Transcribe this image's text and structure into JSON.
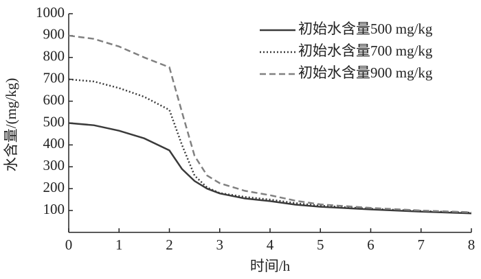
{
  "chart_data": {
    "type": "line",
    "xlabel": "时间/h",
    "ylabel": "水含量/(mg/kg)",
    "x": [
      0,
      0.5,
      1,
      1.5,
      2,
      2.25,
      2.5,
      2.75,
      3,
      3.5,
      4,
      4.5,
      5,
      6,
      7,
      8
    ],
    "series": [
      {
        "name": "初始水含量500 mg/kg",
        "color": "#3a3a3a",
        "dash": "solid",
        "values": [
          500,
          490,
          465,
          430,
          375,
          290,
          235,
          200,
          178,
          155,
          143,
          127,
          117,
          105,
          95,
          87
        ]
      },
      {
        "name": "初始水含量700 mg/kg",
        "color": "#3a3a3a",
        "dash": "dotted",
        "values": [
          700,
          690,
          660,
          620,
          560,
          400,
          260,
          205,
          180,
          162,
          150,
          134,
          122,
          108,
          98,
          90
        ]
      },
      {
        "name": "初始水含量900 mg/kg",
        "color": "#808080",
        "dash": "dashed",
        "values": [
          900,
          885,
          850,
          800,
          755,
          550,
          350,
          260,
          225,
          190,
          170,
          145,
          128,
          112,
          100,
          92
        ]
      }
    ],
    "xlim": [
      0,
      8
    ],
    "xticks": [
      0,
      1,
      2,
      3,
      4,
      5,
      6,
      7,
      8
    ],
    "ylim": [
      0,
      1000
    ],
    "yticks": [
      100,
      200,
      300,
      400,
      500,
      600,
      700,
      800,
      900,
      1000
    ],
    "grid": false,
    "legend": "upper right"
  }
}
